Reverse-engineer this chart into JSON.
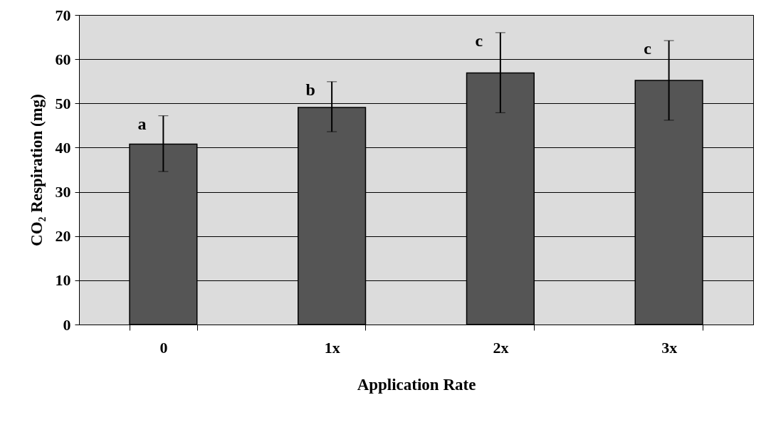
{
  "chart_data": {
    "type": "bar",
    "xlabel": "Application Rate",
    "ylabel": "CO₂ Respiration (mg)",
    "categories": [
      "0",
      "1x",
      "2x",
      "3x"
    ],
    "series": [
      {
        "color": "#555555",
        "values": [
          40.8,
          49.1,
          56.9,
          55.2
        ],
        "errors": [
          [
            34.6,
            47.2
          ],
          [
            43.6,
            54.9
          ],
          [
            47.9,
            66.0
          ],
          [
            46.2,
            64.2
          ]
        ]
      }
    ],
    "ylim": [
      0,
      70
    ],
    "yticks": [
      0,
      10,
      20,
      30,
      40,
      50,
      60,
      70
    ],
    "grid": "y",
    "annotations": [
      "a",
      "b",
      "c",
      "c"
    ]
  }
}
